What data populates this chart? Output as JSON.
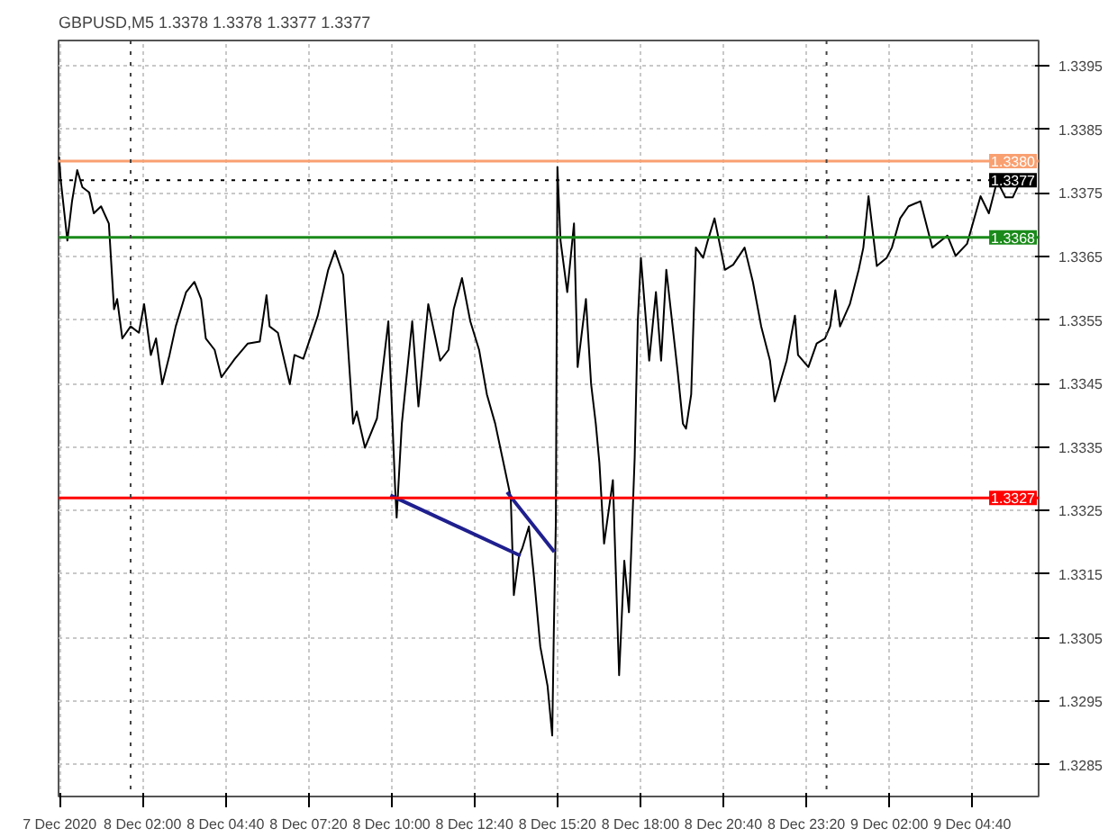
{
  "chart_data": {
    "type": "line",
    "title": "GBPUSD,M5  1.3378 1.3378 1.3377 1.3377",
    "xlim": [
      "2020-12-07T23:18",
      "2020-12-09T06:48"
    ],
    "ylim": [
      1.328,
      1.3399
    ],
    "xticks": [
      {
        "value": "2020-12-07T23:20",
        "label": "7 Dec 2020"
      },
      {
        "value": "2020-12-08T02:00",
        "label": "8 Dec 02:00"
      },
      {
        "value": "2020-12-08T04:40",
        "label": "8 Dec 04:40"
      },
      {
        "value": "2020-12-08T07:20",
        "label": "8 Dec 07:20"
      },
      {
        "value": "2020-12-08T10:00",
        "label": "8 Dec 10:00"
      },
      {
        "value": "2020-12-08T12:40",
        "label": "8 Dec 12:40"
      },
      {
        "value": "2020-12-08T15:20",
        "label": "8 Dec 15:20"
      },
      {
        "value": "2020-12-08T18:00",
        "label": "8 Dec 18:00"
      },
      {
        "value": "2020-12-08T20:40",
        "label": "8 Dec 20:40"
      },
      {
        "value": "2020-12-08T23:20",
        "label": "8 Dec 23:20"
      },
      {
        "value": "2020-12-09T02:00",
        "label": "9 Dec 02:00"
      },
      {
        "value": "2020-12-09T04:40",
        "label": "9 Dec 04:40"
      }
    ],
    "yticks": [
      1.3285,
      1.3295,
      1.3305,
      1.3315,
      1.3325,
      1.3335,
      1.3345,
      1.3355,
      1.3365,
      1.3375,
      1.3385,
      1.3395
    ],
    "grid": true,
    "line_style": "solid",
    "series": [
      {
        "color": "#000000",
        "x": [
          "2020-12-07T23:19",
          "2020-12-07T23:22",
          "2020-12-07T23:35",
          "2020-12-07T23:44",
          "2020-12-07T23:54",
          "2020-12-08T00:04",
          "2020-12-08T00:17",
          "2020-12-08T00:26",
          "2020-12-08T00:40",
          "2020-12-08T00:55",
          "2020-12-08T01:05",
          "2020-12-08T01:11",
          "2020-12-08T01:21",
          "2020-12-08T01:37",
          "2020-12-08T01:53",
          "2020-12-08T02:03",
          "2020-12-08T02:16",
          "2020-12-08T02:26",
          "2020-12-08T02:38",
          "2020-12-08T02:52",
          "2020-12-08T03:04",
          "2020-12-08T03:24",
          "2020-12-08T03:40",
          "2020-12-08T03:53",
          "2020-12-08T04:02",
          "2020-12-08T04:19",
          "2020-12-08T04:32",
          "2020-12-08T04:58",
          "2020-12-08T05:23",
          "2020-12-08T05:46",
          "2020-12-08T05:59",
          "2020-12-08T06:05",
          "2020-12-08T06:21",
          "2020-12-08T06:44",
          "2020-12-08T06:53",
          "2020-12-08T07:10",
          "2020-12-08T07:38",
          "2020-12-08T07:58",
          "2020-12-08T08:11",
          "2020-12-08T08:27",
          "2020-12-08T08:46",
          "2020-12-08T08:53",
          "2020-12-08T09:09",
          "2020-12-08T09:32",
          "2020-12-08T09:54",
          "2020-12-08T10:07",
          "2020-12-08T10:10",
          "2020-12-08T10:20",
          "2020-12-08T10:40",
          "2020-12-08T10:52",
          "2020-12-08T11:11",
          "2020-12-08T11:34",
          "2020-12-08T11:50",
          "2020-12-08T12:00",
          "2020-12-08T12:16",
          "2020-12-08T12:32",
          "2020-12-08T12:49",
          "2020-12-08T13:04",
          "2020-12-08T13:20",
          "2020-12-08T13:34",
          "2020-12-08T13:50",
          "2020-12-08T13:56",
          "2020-12-08T14:06",
          "2020-12-08T14:12",
          "2020-12-08T14:25",
          "2020-12-08T14:35",
          "2020-12-08T14:47",
          "2020-12-08T15:01",
          "2020-12-08T15:10",
          "2020-12-08T15:13",
          "2020-12-08T15:17",
          "2020-12-08T15:20",
          "2020-12-08T15:26",
          "2020-12-08T15:39",
          "2020-12-08T15:52",
          "2020-12-08T15:59",
          "2020-12-08T16:15",
          "2020-12-08T16:25",
          "2020-12-08T16:34",
          "2020-12-08T16:41",
          "2020-12-08T16:50",
          "2020-12-08T17:07",
          "2020-12-08T17:19",
          "2020-12-08T17:29",
          "2020-12-08T17:38",
          "2020-12-08T17:49",
          "2020-12-08T17:55",
          "2020-12-08T18:01",
          "2020-12-08T18:17",
          "2020-12-08T18:30",
          "2020-12-08T18:40",
          "2020-12-08T18:50",
          "2020-12-08T19:12",
          "2020-12-08T19:22",
          "2020-12-08T19:28",
          "2020-12-08T19:38",
          "2020-12-08T19:47",
          "2020-12-08T20:01",
          "2020-12-08T20:10",
          "2020-12-08T20:23",
          "2020-12-08T20:43",
          "2020-12-08T20:59",
          "2020-12-08T21:21",
          "2020-12-08T21:37",
          "2020-12-08T21:53",
          "2020-12-08T22:10",
          "2020-12-08T22:19",
          "2020-12-08T22:42",
          "2020-12-08T22:58",
          "2020-12-08T23:04",
          "2020-12-08T23:24",
          "2020-12-08T23:40",
          "2020-12-08T23:56",
          "2020-12-09T00:06",
          "2020-12-09T00:16",
          "2020-12-09T00:25",
          "2020-12-09T00:44",
          "2020-12-09T01:01",
          "2020-12-09T01:10",
          "2020-12-09T01:20",
          "2020-12-09T01:36",
          "2020-12-09T01:55",
          "2020-12-09T02:05",
          "2020-12-09T02:21",
          "2020-12-09T02:37",
          "2020-12-09T03:00",
          "2020-12-09T03:23",
          "2020-12-09T03:52",
          "2020-12-09T04:08",
          "2020-12-09T04:30",
          "2020-12-09T04:56",
          "2020-12-09T05:12",
          "2020-12-09T05:28",
          "2020-12-09T05:44",
          "2020-12-09T05:58",
          "2020-12-09T06:13"
        ],
        "values": [
          1.33807,
          1.33772,
          1.33675,
          1.33737,
          1.33786,
          1.33759,
          1.33751,
          1.33718,
          1.33729,
          1.33702,
          1.33567,
          1.33583,
          1.33521,
          1.3354,
          1.3353,
          1.33575,
          1.33495,
          1.33521,
          1.33449,
          1.33495,
          1.3354,
          1.33594,
          1.3361,
          1.33583,
          1.33521,
          1.33503,
          1.3346,
          1.33489,
          1.33513,
          1.33516,
          1.33589,
          1.3354,
          1.3353,
          1.33449,
          1.33495,
          1.33489,
          1.33557,
          1.33629,
          1.33659,
          1.33621,
          1.33387,
          1.33406,
          1.33349,
          1.33395,
          1.33548,
          1.33287,
          1.33239,
          1.33387,
          1.33548,
          1.33414,
          1.33575,
          1.33486,
          1.33503,
          1.33567,
          1.33616,
          1.33548,
          1.33503,
          1.33433,
          1.33387,
          1.33333,
          1.33271,
          1.33117,
          1.33179,
          1.3319,
          1.33225,
          1.33144,
          1.33036,
          1.32974,
          1.32896,
          1.33055,
          1.33233,
          1.33791,
          1.33675,
          1.33594,
          1.33702,
          1.33476,
          1.33583,
          1.33449,
          1.33387,
          1.33325,
          1.33198,
          1.33298,
          1.32991,
          1.33171,
          1.3309,
          1.33333,
          1.33548,
          1.33648,
          1.33486,
          1.33594,
          1.33486,
          1.33629,
          1.33468,
          1.33387,
          1.33379,
          1.33433,
          1.33664,
          1.33648,
          1.33675,
          1.3371,
          1.33629,
          1.33637,
          1.33664,
          1.3361,
          1.3354,
          1.33486,
          1.33422,
          1.33486,
          1.33557,
          1.33495,
          1.33476,
          1.33513,
          1.33521,
          1.3354,
          1.33597,
          1.3354,
          1.33575,
          1.33629,
          1.33664,
          1.33745,
          1.33635,
          1.33648,
          1.33664,
          1.3371,
          1.33729,
          1.33737,
          1.33664,
          1.33683,
          1.33651,
          1.3367,
          1.33745,
          1.33718,
          1.33769,
          1.33743,
          1.33743,
          1.33769
        ]
      },
      {
        "color": "#1f1f8f",
        "x": [
          "2020-12-08T09:58",
          "2020-12-08T14:09"
        ],
        "values": [
          1.33274,
          1.33179
        ]
      },
      {
        "color": "#1f1f8f",
        "x": [
          "2020-12-08T13:43",
          "2020-12-08T15:14"
        ],
        "values": [
          1.33279,
          1.33185
        ]
      }
    ],
    "ref_lines": [
      {
        "axis": "y",
        "value": 1.338,
        "label": "1.3380",
        "color": "#f9a071"
      },
      {
        "axis": "y",
        "value": 1.3377,
        "label": "1.3377",
        "color": "#000000",
        "line_style": "dotted"
      },
      {
        "axis": "y",
        "value": 1.3368,
        "label": "1.3368",
        "color": "#1a8a1a"
      },
      {
        "axis": "y",
        "value": 1.3327,
        "label": "1.3327",
        "color": "#ff0000"
      },
      {
        "axis": "x",
        "value": "2020-12-08T01:37",
        "label": null,
        "color": "#444444",
        "line_style": "dotted"
      },
      {
        "axis": "x",
        "value": "2020-12-08T23:59",
        "label": null,
        "color": "#444444",
        "line_style": "dotted"
      }
    ]
  }
}
